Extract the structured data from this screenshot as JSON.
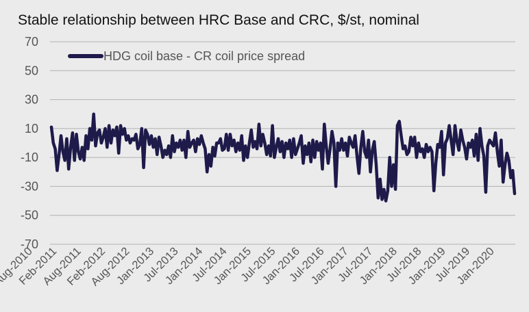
{
  "chart_data": {
    "type": "line",
    "title": "Stable relationship between HRC Base and CRC, $/st, nominal",
    "xlabel": "",
    "ylabel": "",
    "ylim": [
      -70,
      70
    ],
    "yticks": [
      70,
      50,
      30,
      10,
      -10,
      -30,
      -50,
      -70
    ],
    "grid": true,
    "legend_position": "top-left",
    "xtick_labels": [
      "Aug-2010",
      "Feb-2011",
      "Aug-2011",
      "Feb-2012",
      "Aug-2012",
      "Jan-2013",
      "Jul-2013",
      "Jan-2014",
      "Jul-2014",
      "Jan-2015",
      "Jul-2015",
      "Jan-2016",
      "Jul-2016",
      "Jan-2017",
      "Jul-2017",
      "Jan-2018",
      "Jul-2018",
      "Jan-2019",
      "Jul-2019",
      "Jan-2020"
    ],
    "series": [
      {
        "name": "HDG coil base - CR coil price spread",
        "color": "#1e1a4a",
        "values": [
          11,
          0,
          -4,
          -19,
          -8,
          5,
          -6,
          -12,
          3,
          -18,
          -3,
          7,
          -12,
          6,
          -6,
          -11,
          -3,
          -12,
          5,
          -4,
          10,
          2,
          20,
          -2,
          7,
          9,
          0,
          4,
          10,
          -3,
          12,
          0,
          9,
          5,
          11,
          -7,
          12,
          6,
          10,
          2,
          5,
          0,
          3,
          2,
          6,
          -4,
          -1,
          10,
          -17,
          9,
          6,
          -1,
          5,
          -3,
          3,
          -8,
          4,
          -2,
          -10,
          -5,
          -8,
          -2,
          -10,
          5,
          -6,
          0,
          -3,
          2,
          -5,
          2,
          -10,
          8,
          -3,
          0,
          2,
          -6,
          3,
          -1,
          5,
          0,
          -4,
          -20,
          -8,
          -16,
          -3,
          -9,
          0,
          0,
          3,
          -5,
          -4,
          6,
          -5,
          6,
          -2,
          2,
          -6,
          0,
          -5,
          5,
          -12,
          -2,
          -10,
          0,
          9,
          -3,
          1,
          -4,
          13,
          -2,
          6,
          0,
          -8,
          -2,
          -9,
          12,
          -10,
          -3,
          3,
          -6,
          1,
          -10,
          0,
          -4,
          2,
          -10,
          3,
          -8,
          -4,
          0,
          5,
          -14,
          -2,
          -8,
          0,
          -13,
          2,
          -10,
          1,
          -5,
          0,
          -18,
          13,
          -2,
          -14,
          -4,
          8,
          0,
          -30,
          0,
          -5,
          3,
          -5,
          0,
          -9,
          4,
          0,
          -3,
          5,
          -9,
          -21,
          -3,
          8,
          -6,
          -10,
          2,
          -20,
          -5,
          1,
          -15,
          -38,
          -25,
          -39,
          -32,
          -40,
          -33,
          -10,
          -30,
          -15,
          -32,
          12,
          15,
          5,
          -4,
          -2,
          -8,
          -6,
          4,
          -2,
          4,
          -10,
          0,
          -6,
          -4,
          -10,
          -1,
          -6,
          -3,
          -6,
          -33,
          -14,
          -1,
          -3,
          8,
          -22,
          0,
          3,
          12,
          2,
          -8,
          12,
          1,
          -5,
          9,
          2,
          -3,
          -11,
          0,
          -3,
          2,
          -9,
          6,
          -12,
          10,
          -2,
          -9,
          -34,
          -2,
          2,
          0,
          -2,
          7,
          -6,
          -16,
          2,
          -27,
          -15,
          -7,
          -12,
          -24,
          -19,
          -35
        ]
      }
    ]
  }
}
